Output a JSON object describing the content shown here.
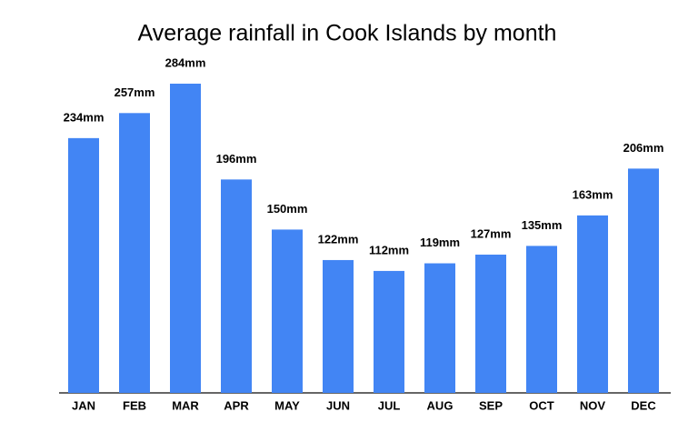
{
  "chart_data": {
    "type": "bar",
    "title": "Average rainfall in Cook Islands by month",
    "categories": [
      "JAN",
      "FEB",
      "MAR",
      "APR",
      "MAY",
      "JUN",
      "JUL",
      "AUG",
      "SEP",
      "OCT",
      "NOV",
      "DEC"
    ],
    "values": [
      234,
      257,
      284,
      196,
      150,
      122,
      112,
      119,
      127,
      135,
      163,
      206
    ],
    "value_labels": [
      "234mm",
      "257mm",
      "284mm",
      "196mm",
      "150mm",
      "122mm",
      "112mm",
      "119mm",
      "127mm",
      "135mm",
      "163mm",
      "206mm"
    ],
    "color": "#4285f4"
  }
}
